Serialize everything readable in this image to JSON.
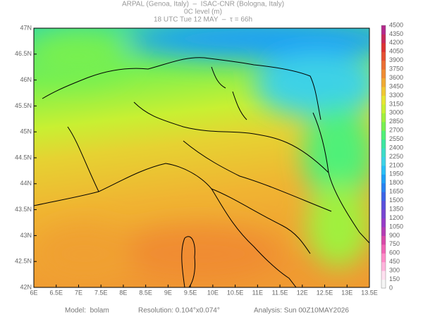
{
  "header": {
    "line1": "ARPAL (Genoa, Italy)  –  ISAC-CNR (Bologna, Italy)",
    "line2": "0C level (m)",
    "line3": "18 UTC Tue 12 MAY  –  τ = 66h"
  },
  "lon_labels": [
    "6E",
    "6.5E",
    "7E",
    "7.5E",
    "8E",
    "8.5E",
    "9E",
    "9.5E",
    "10E",
    "10.5E",
    "11E",
    "11.5E",
    "12E",
    "12.5E",
    "13E",
    "13.5E"
  ],
  "lat_labels": [
    "47N",
    "46.5N",
    "46N",
    "45.5N",
    "45N",
    "44.5N",
    "44N",
    "43.5N",
    "43N",
    "42.5N",
    "42N"
  ],
  "colorbar": {
    "labels": [
      0,
      150,
      300,
      450,
      600,
      750,
      900,
      1050,
      1200,
      1350,
      1500,
      1650,
      1800,
      1950,
      2100,
      2250,
      2400,
      2550,
      2700,
      2850,
      3000,
      3150,
      3300,
      3450,
      3600,
      3750,
      3900,
      4050,
      4200,
      4350,
      4500
    ],
    "colors": [
      "#f5f5f5",
      "#ffe0f0",
      "#ffb4dc",
      "#ff8cc8",
      "#f064b4",
      "#d848a8",
      "#b43cb4",
      "#963cc8",
      "#7846d2",
      "#5a50dc",
      "#3c64e6",
      "#2882f0",
      "#1ea0f5",
      "#28bef5",
      "#3cd2e6",
      "#3cdcc8",
      "#3ce6a0",
      "#50f078",
      "#78f050",
      "#a0f03c",
      "#c8f032",
      "#e6e632",
      "#f0c832",
      "#f0aa32",
      "#f08c32",
      "#eb6e32",
      "#e65032",
      "#dc3232",
      "#c8285a",
      "#b4288c"
    ]
  },
  "footer": {
    "model": "Model:  bolam",
    "resolution": "Resolution: 0.104°x0.074°",
    "analysis": "Analysis: Sun 00Z10MAY2026"
  }
}
